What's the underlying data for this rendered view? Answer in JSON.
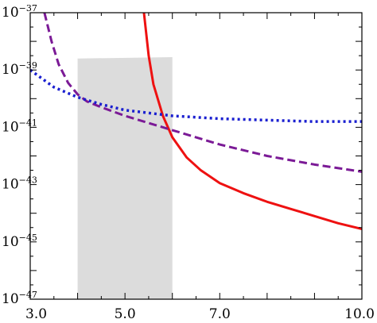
{
  "chart_data": {
    "type": "line",
    "title": "",
    "xlabel": "",
    "ylabel": "",
    "xlim": [
      3.0,
      10.0
    ],
    "ylim_log10": [
      -47,
      -37
    ],
    "y_scale": "log",
    "x_ticks": [
      3.0,
      5.0,
      7.0,
      10.0
    ],
    "x_tick_labels": [
      "3.0",
      "5.0",
      "7.0",
      "10.0"
    ],
    "y_ticks_exp": [
      -47,
      -45,
      -43,
      -41,
      -39,
      -37
    ],
    "y_tick_base": "10",
    "y_tick_exponents": [
      "−47",
      "−45",
      "−43",
      "−41",
      "−39",
      "−37"
    ],
    "grid": false,
    "shaded_region": {
      "x_range": [
        4.0,
        6.0
      ],
      "top_y_log10_at": [
        [
          4.0,
          -38.6
        ],
        [
          6.0,
          -38.55
        ]
      ],
      "bottom_y_log10": -47,
      "color": "#dcdcdc"
    },
    "series": [
      {
        "style": "solid",
        "color": "#ee1111",
        "x": [
          5.4,
          5.5,
          5.6,
          5.8,
          6.0,
          6.3,
          6.6,
          7.0,
          7.5,
          8.0,
          8.5,
          9.0,
          9.5,
          10.0
        ],
        "y_log10": [
          -37.0,
          -38.5,
          -39.5,
          -40.6,
          -41.35,
          -42.05,
          -42.5,
          -42.95,
          -43.3,
          -43.6,
          -43.85,
          -44.1,
          -44.35,
          -44.55
        ]
      },
      {
        "style": "dashed",
        "color": "#7b1a96",
        "x": [
          3.3,
          3.45,
          3.6,
          3.8,
          4.0,
          4.2,
          4.5,
          5.0,
          5.5,
          6.0,
          7.0,
          8.0,
          9.0,
          10.0
        ],
        "y_log10": [
          -37.0,
          -38.0,
          -38.8,
          -39.45,
          -39.85,
          -40.1,
          -40.3,
          -40.6,
          -40.85,
          -41.1,
          -41.6,
          -42.0,
          -42.3,
          -42.55
        ]
      },
      {
        "style": "dotted",
        "color": "#1a1fd0",
        "x": [
          3.0,
          3.5,
          4.0,
          4.5,
          5.0,
          5.5,
          6.0,
          7.0,
          8.0,
          9.0,
          10.0
        ],
        "y_log10": [
          -39.0,
          -39.6,
          -39.95,
          -40.2,
          -40.4,
          -40.5,
          -40.6,
          -40.7,
          -40.75,
          -40.8,
          -40.8
        ]
      }
    ]
  }
}
